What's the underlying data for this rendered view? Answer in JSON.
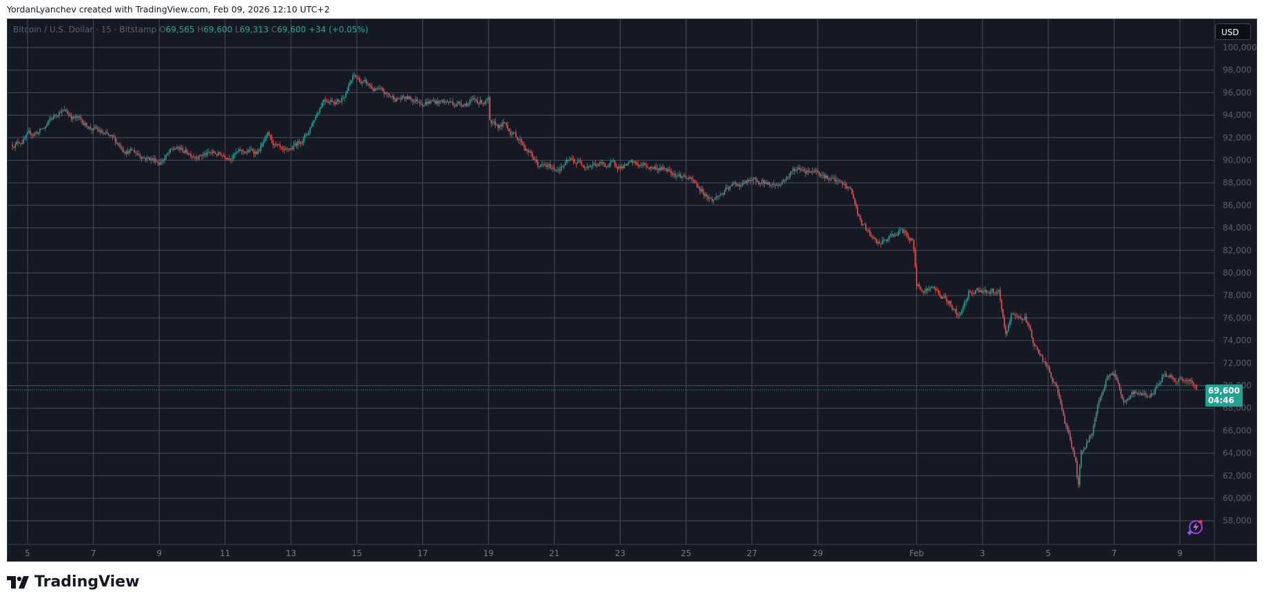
{
  "header": {
    "attribution": "YordanLyanchev created with TradingView.com, Feb 09, 2026 12:10 UTC+2"
  },
  "legend": {
    "symbol": "Bitcoin / U.S. Dollar · 15 · Bitstamp",
    "open_label": "O",
    "open": "69,565",
    "high_label": "H",
    "high": "69,600",
    "low_label": "L",
    "low": "69,313",
    "close_label": "C",
    "close": "69,600",
    "change": "+34 (+0.05%)"
  },
  "currency_button": "USD",
  "last_price": {
    "price": "69,600",
    "countdown": "04:46"
  },
  "brand": {
    "name": "TradingView"
  },
  "colors": {
    "background": "#151924",
    "grid": "#4a4e5a",
    "up": "#26a69a",
    "down": "#ef5350",
    "price_label": "#22a392"
  },
  "icons": {
    "logo": "tradingview-logo-icon",
    "assistant": "lightning-sparkle-icon"
  },
  "chart_data": {
    "type": "candlestick",
    "interval": "15",
    "ylim": [
      56800,
      101000
    ],
    "y_ticks": [
      "58,000",
      "60,000",
      "62,000",
      "64,000",
      "66,000",
      "68,000",
      "70,000",
      "72,000",
      "74,000",
      "76,000",
      "78,000",
      "80,000",
      "82,000",
      "84,000",
      "86,000",
      "88,000",
      "90,000",
      "92,000",
      "94,000",
      "96,000",
      "98,000",
      "100,000"
    ],
    "y_tick_values": [
      58000,
      60000,
      62000,
      64000,
      66000,
      68000,
      70000,
      72000,
      74000,
      76000,
      78000,
      80000,
      82000,
      84000,
      86000,
      88000,
      90000,
      92000,
      94000,
      96000,
      98000,
      100000
    ],
    "x_ticks": [
      {
        "label": "5",
        "day": 5
      },
      {
        "label": "7",
        "day": 7
      },
      {
        "label": "9",
        "day": 9
      },
      {
        "label": "11",
        "day": 11
      },
      {
        "label": "13",
        "day": 13
      },
      {
        "label": "15",
        "day": 15
      },
      {
        "label": "17",
        "day": 17
      },
      {
        "label": "19",
        "day": 19
      },
      {
        "label": "21",
        "day": 21
      },
      {
        "label": "23",
        "day": 23
      },
      {
        "label": "25",
        "day": 25
      },
      {
        "label": "27",
        "day": 27
      },
      {
        "label": "29",
        "day": 29
      },
      {
        "label": "Feb",
        "day": 32
      },
      {
        "label": "3",
        "day": 34
      },
      {
        "label": "5",
        "day": 36
      },
      {
        "label": "7",
        "day": 38
      },
      {
        "label": "9",
        "day": 40
      }
    ],
    "x_unit": "day of Jan 2026 (Feb dates continue past 31)",
    "xlim": [
      4.5,
      41.3
    ],
    "price_path": [
      [
        4.5,
        91350
      ],
      [
        5.5,
        92800
      ],
      [
        6,
        94560
      ],
      [
        7,
        92800
      ],
      [
        8,
        91000
      ],
      [
        9,
        89900
      ],
      [
        9.5,
        91000
      ],
      [
        10,
        90600
      ],
      [
        11,
        90500
      ],
      [
        12,
        90850
      ],
      [
        12.3,
        92000
      ],
      [
        12.8,
        90300
      ],
      [
        13.5,
        92400
      ],
      [
        14,
        95600
      ],
      [
        14.5,
        95300
      ],
      [
        14.9,
        97400
      ],
      [
        15.5,
        96300
      ],
      [
        16,
        95600
      ],
      [
        17,
        95300
      ],
      [
        18,
        95100
      ],
      [
        19,
        95300
      ],
      [
        19.05,
        92800
      ],
      [
        19.5,
        93100
      ],
      [
        20,
        91700
      ],
      [
        20.5,
        89550
      ],
      [
        21,
        89200
      ],
      [
        21.5,
        89900
      ],
      [
        22.5,
        89550
      ],
      [
        23.5,
        89550
      ],
      [
        24.5,
        89200
      ],
      [
        25,
        88500
      ],
      [
        25.8,
        86500
      ],
      [
        26.5,
        87800
      ],
      [
        27,
        88100
      ],
      [
        27.8,
        87800
      ],
      [
        28.3,
        89200
      ],
      [
        29,
        89200
      ],
      [
        29.5,
        88100
      ],
      [
        30,
        87400
      ],
      [
        30.3,
        84500
      ],
      [
        30.8,
        82400
      ],
      [
        31.2,
        83100
      ],
      [
        31.5,
        83800
      ],
      [
        31.9,
        82800
      ],
      [
        32,
        78800
      ],
      [
        32.5,
        78600
      ],
      [
        33,
        77400
      ],
      [
        33.3,
        76000
      ],
      [
        33.6,
        78500
      ],
      [
        34,
        78600
      ],
      [
        34.5,
        78100
      ],
      [
        34.7,
        74200
      ],
      [
        34.9,
        76300
      ],
      [
        35.3,
        76000
      ],
      [
        35.6,
        73500
      ],
      [
        36,
        71300
      ],
      [
        36.3,
        69200
      ],
      [
        36.6,
        65600
      ],
      [
        36.85,
        63100
      ],
      [
        36.9,
        61000
      ],
      [
        37,
        64200
      ],
      [
        37.3,
        65600
      ],
      [
        37.6,
        69200
      ],
      [
        37.8,
        71000
      ],
      [
        38.1,
        70600
      ],
      [
        38.3,
        68100
      ],
      [
        38.6,
        69200
      ],
      [
        39.2,
        69300
      ],
      [
        39.5,
        71000
      ],
      [
        40,
        70600
      ],
      [
        40.3,
        70200
      ],
      [
        40.5,
        69600
      ]
    ],
    "last_close": 69600
  }
}
